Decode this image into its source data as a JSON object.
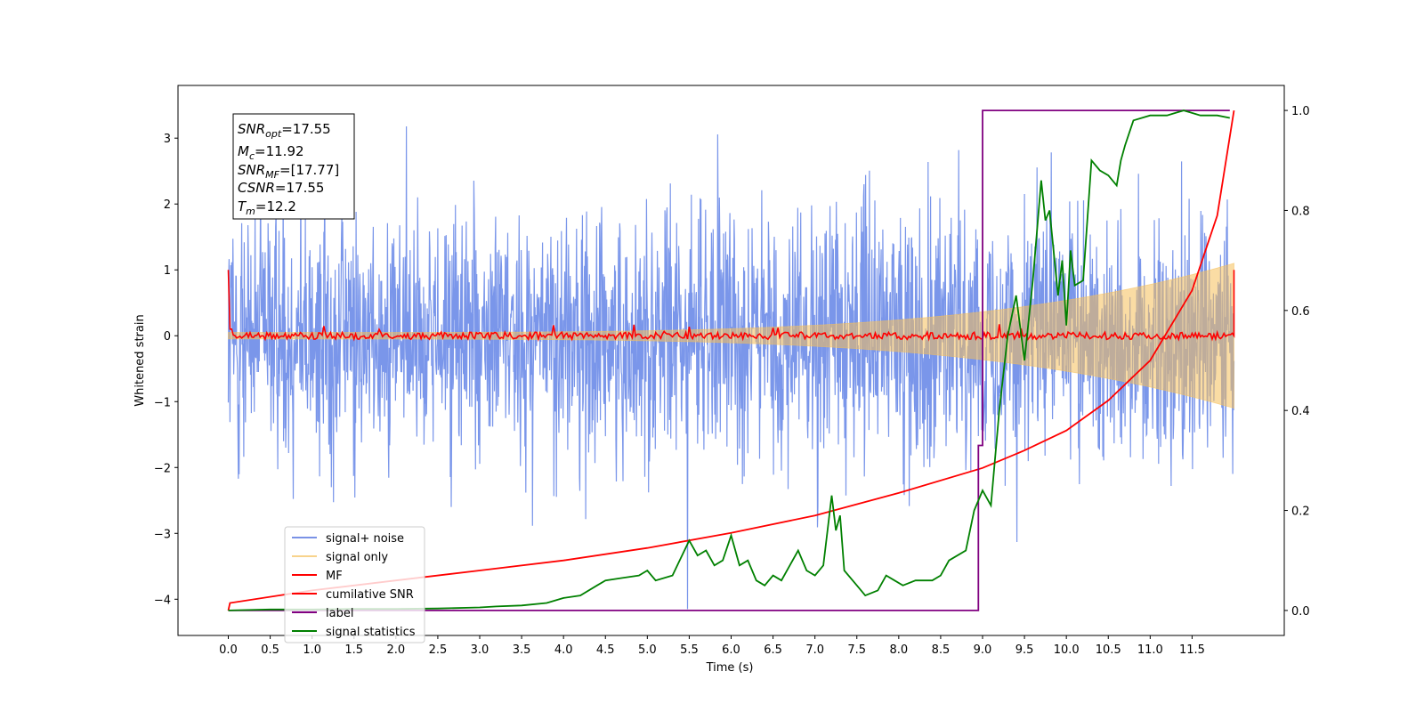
{
  "chart_data": {
    "type": "line",
    "xlabel": "Time (s)",
    "ylabel": "Whitened strain",
    "xlim": [
      -0.6,
      12.6
    ],
    "ylim": [
      -4.55,
      3.8
    ],
    "y2lim": [
      -0.05,
      1.05
    ],
    "x_ticks": [
      "0.0",
      "0.5",
      "1.0",
      "1.5",
      "2.0",
      "2.5",
      "3.0",
      "3.5",
      "4.0",
      "4.5",
      "5.0",
      "5.5",
      "6.0",
      "6.5",
      "7.0",
      "7.5",
      "8.0",
      "8.5",
      "9.0",
      "9.5",
      "10.0",
      "10.5",
      "11.0",
      "11.5"
    ],
    "y_ticks": [
      "3",
      "2",
      "1",
      "0",
      "−1",
      "−2",
      "−3",
      "−4"
    ],
    "y2_ticks": [
      "1.0",
      "0.8",
      "0.6",
      "0.4",
      "0.2",
      "0.0"
    ],
    "legend_placement": "lower-left",
    "annotation": [
      {
        "base": "SNR",
        "sub": "opt",
        "value": "=17.55"
      },
      {
        "base": "M",
        "sub": "c",
        "value": "=11.92"
      },
      {
        "base": "SNR",
        "sub": "MF",
        "value": "=[17.77]"
      },
      {
        "base": "CSNR",
        "sub": "",
        "value": "=17.55"
      },
      {
        "base": "T",
        "sub": "m",
        "value": "=12.2"
      }
    ],
    "series": [
      {
        "name": "signal+ noise",
        "axis": "left",
        "color": "#4169e1",
        "description": "noisy strain, amplitude ~ ±2.7 peaks up to 3.4 / -4.2"
      },
      {
        "name": "signal only",
        "axis": "left",
        "color": "#f5c05a",
        "description": "chirp, amplitude grows from ~0.05 at 0 s to ~1.1 at 12 s"
      },
      {
        "name": "MF",
        "axis": "left",
        "color": "#ff0000",
        "description": "noise around 0, spikes to 1.0 at both ends",
        "endpoints": [
          {
            "x": 0.0,
            "y": 1.0
          },
          {
            "x": 12.0,
            "y": 1.0
          }
        ]
      },
      {
        "name": "cumilative SNR",
        "axis": "right",
        "color": "#ff0000",
        "x": [
          0.0,
          0.02,
          1,
          2,
          3,
          4,
          5,
          6,
          7,
          8,
          9,
          9.5,
          10,
          10.5,
          11,
          11.5,
          11.8,
          12.0
        ],
        "y": [
          0.0,
          0.015,
          0.04,
          0.06,
          0.08,
          0.1,
          0.125,
          0.155,
          0.19,
          0.235,
          0.285,
          0.32,
          0.36,
          0.42,
          0.5,
          0.64,
          0.79,
          1.0
        ]
      },
      {
        "name": "label",
        "axis": "right",
        "color": "#800080",
        "x": [
          0.0,
          8.95,
          8.95,
          9.0,
          9.0,
          11.95
        ],
        "y": [
          0.0,
          0.0,
          0.33,
          0.33,
          1.0,
          1.0
        ]
      },
      {
        "name": "signal statistics",
        "axis": "right",
        "color": "#008000",
        "x": [
          0,
          0.5,
          1,
          1.5,
          2,
          2.5,
          3,
          3.2,
          3.5,
          3.8,
          4,
          4.2,
          4.4,
          4.5,
          4.7,
          4.9,
          5,
          5.1,
          5.3,
          5.5,
          5.6,
          5.7,
          5.8,
          5.9,
          6,
          6.1,
          6.2,
          6.3,
          6.4,
          6.5,
          6.6,
          6.8,
          6.9,
          7,
          7.1,
          7.2,
          7.25,
          7.3,
          7.35,
          7.5,
          7.6,
          7.75,
          7.85,
          7.95,
          8.05,
          8.2,
          8.4,
          8.5,
          8.6,
          8.8,
          8.9,
          9.0,
          9.1,
          9.2,
          9.3,
          9.4,
          9.5,
          9.6,
          9.7,
          9.75,
          9.8,
          9.9,
          9.95,
          10.0,
          10.05,
          10.1,
          10.2,
          10.3,
          10.4,
          10.5,
          10.6,
          10.65,
          10.7,
          10.8,
          11.0,
          11.2,
          11.4,
          11.6,
          11.8,
          11.95
        ],
        "y": [
          0.0,
          0.002,
          0.002,
          0.003,
          0.003,
          0.004,
          0.006,
          0.008,
          0.01,
          0.015,
          0.025,
          0.03,
          0.05,
          0.06,
          0.065,
          0.07,
          0.08,
          0.06,
          0.07,
          0.14,
          0.11,
          0.12,
          0.09,
          0.1,
          0.15,
          0.09,
          0.1,
          0.06,
          0.05,
          0.07,
          0.06,
          0.12,
          0.08,
          0.07,
          0.09,
          0.23,
          0.16,
          0.19,
          0.08,
          0.05,
          0.03,
          0.04,
          0.07,
          0.06,
          0.05,
          0.06,
          0.06,
          0.07,
          0.1,
          0.12,
          0.2,
          0.24,
          0.21,
          0.4,
          0.55,
          0.63,
          0.5,
          0.66,
          0.86,
          0.78,
          0.8,
          0.63,
          0.7,
          0.57,
          0.72,
          0.65,
          0.66,
          0.9,
          0.88,
          0.87,
          0.85,
          0.9,
          0.93,
          0.98,
          0.99,
          0.99,
          1.0,
          0.99,
          0.99,
          0.985
        ]
      }
    ]
  }
}
